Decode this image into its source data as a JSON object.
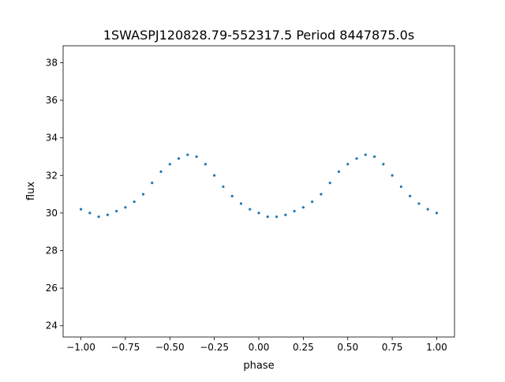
{
  "chart_data": {
    "type": "scatter",
    "title": "1SWASPJ120828.79-552317.5 Period 8447875.0s",
    "xlabel": "phase",
    "ylabel": "flux",
    "xlim": [
      -1.1,
      1.1
    ],
    "ylim": [
      23.4,
      38.9
    ],
    "xticks": [
      -1.0,
      -0.75,
      -0.5,
      -0.25,
      0.0,
      0.25,
      0.5,
      0.75,
      1.0
    ],
    "xtick_labels": [
      "−1.00",
      "−0.75",
      "−0.50",
      "−0.25",
      "0.00",
      "0.25",
      "0.50",
      "0.75",
      "1.00"
    ],
    "yticks": [
      24,
      26,
      28,
      30,
      32,
      34,
      36,
      38
    ],
    "ytick_labels": [
      "24",
      "26",
      "28",
      "30",
      "32",
      "34",
      "36",
      "38"
    ],
    "grid": false,
    "legend": "none",
    "marker_color": "#1f77b4",
    "series": [
      {
        "x": [
          -1.0,
          -0.95,
          -0.9,
          -0.85,
          -0.8,
          -0.75,
          -0.7,
          -0.65,
          -0.6,
          -0.55,
          -0.5,
          -0.45,
          -0.4,
          -0.35,
          -0.3,
          -0.25,
          -0.2,
          -0.15,
          -0.1,
          -0.05,
          0.0,
          0.05,
          0.1,
          0.15,
          0.2,
          0.25,
          0.3,
          0.35,
          0.4,
          0.45,
          0.5,
          0.55,
          0.6,
          0.65,
          0.7,
          0.75,
          0.8,
          0.85,
          0.9,
          0.95,
          1.0
        ],
        "y": [
          30.2,
          30.0,
          29.8,
          29.9,
          30.1,
          30.3,
          30.6,
          31.0,
          31.6,
          32.2,
          32.6,
          32.9,
          33.1,
          33.0,
          32.6,
          32.0,
          31.4,
          30.9,
          30.5,
          30.2,
          30.0,
          29.8,
          29.8,
          29.9,
          30.1,
          30.3,
          30.6,
          31.0,
          31.6,
          32.2,
          32.6,
          32.9,
          33.1,
          33.0,
          32.6,
          32.0,
          31.4,
          30.9,
          30.5,
          30.2,
          30.0
        ]
      }
    ]
  }
}
